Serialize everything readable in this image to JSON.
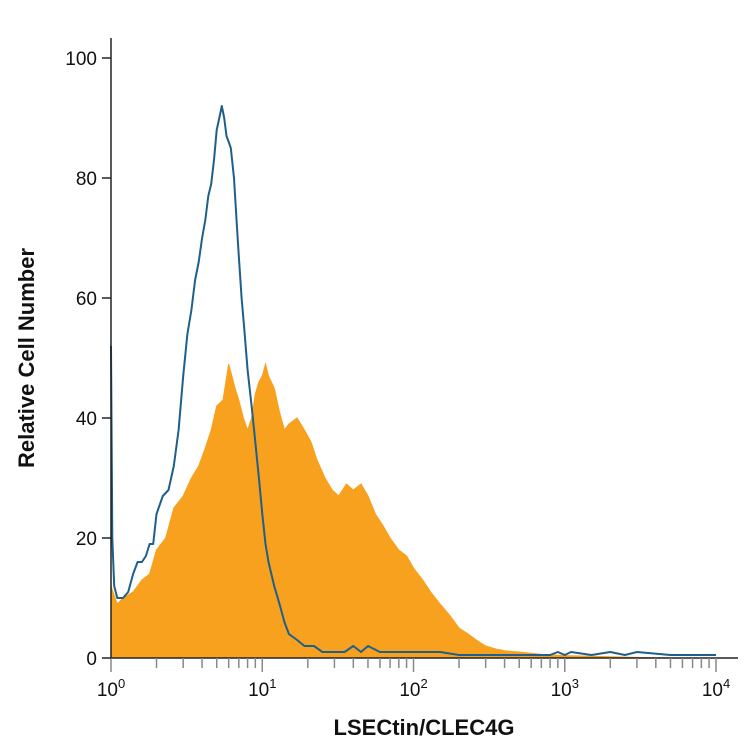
{
  "chart_data": {
    "type": "area",
    "title": "",
    "xlabel": "LSECtin/CLEC4G",
    "ylabel": "Relative Cell Number",
    "x_scale": "log",
    "xlim": [
      1,
      10000
    ],
    "ylim": [
      0,
      100
    ],
    "x_ticks": [
      {
        "value": 1,
        "base": "10",
        "exp": "0"
      },
      {
        "value": 10,
        "base": "10",
        "exp": "1"
      },
      {
        "value": 100,
        "base": "10",
        "exp": "2"
      },
      {
        "value": 1000,
        "base": "10",
        "exp": "3"
      },
      {
        "value": 10000,
        "base": "10",
        "exp": "4"
      }
    ],
    "y_ticks": [
      0,
      20,
      40,
      60,
      80,
      100
    ],
    "grid": false,
    "legend": "none",
    "series": [
      {
        "style": "filled",
        "color": "#F7A11F",
        "x": [
          1,
          1.1,
          1.2,
          1.4,
          1.6,
          1.8,
          2,
          2.3,
          2.6,
          3,
          3.4,
          3.8,
          4.2,
          4.6,
          5,
          5.5,
          6,
          6.3,
          6.6,
          7,
          7.5,
          8,
          8.5,
          9,
          9.5,
          10,
          10.5,
          11,
          12,
          13,
          14,
          15,
          17,
          19,
          21,
          23,
          26,
          29,
          32,
          36,
          40,
          45,
          50,
          56,
          63,
          70,
          80,
          90,
          100,
          115,
          130,
          150,
          175,
          200,
          230,
          260,
          300,
          350,
          400,
          500,
          600,
          700,
          850,
          1000,
          1500,
          2000,
          3000,
          5000,
          7000,
          10000
        ],
        "y": [
          12,
          9,
          10,
          11,
          13,
          14,
          18,
          20,
          25,
          27,
          30,
          32,
          35,
          38,
          42,
          43,
          49,
          47,
          45,
          43,
          40,
          38,
          40,
          44,
          46,
          47,
          49,
          47,
          45,
          41,
          38,
          39,
          40,
          38,
          36,
          33,
          30,
          28,
          27,
          29,
          28,
          29,
          27,
          24,
          22,
          20,
          18,
          17,
          15,
          13,
          11,
          9,
          7,
          5,
          4,
          3,
          2,
          1.5,
          1.2,
          1,
          0.8,
          0.6,
          0.5,
          0.4,
          0.3,
          0.2,
          0.1,
          0,
          0,
          0
        ]
      },
      {
        "style": "line",
        "color": "#1F5F8B",
        "x": [
          1,
          1.02,
          1.05,
          1.1,
          1.2,
          1.3,
          1.4,
          1.5,
          1.6,
          1.7,
          1.8,
          1.9,
          2,
          2.2,
          2.4,
          2.6,
          2.8,
          3,
          3.2,
          3.4,
          3.6,
          3.8,
          4,
          4.2,
          4.4,
          4.6,
          4.8,
          5,
          5.2,
          5.4,
          5.6,
          5.8,
          6,
          6.2,
          6.5,
          6.8,
          7,
          7.3,
          7.6,
          8,
          8.5,
          9,
          9.5,
          10,
          10.5,
          11,
          12,
          13,
          14,
          15,
          17,
          19,
          22,
          25,
          30,
          35,
          40,
          45,
          50,
          60,
          80,
          100,
          150,
          200,
          300,
          500,
          800,
          900,
          1000,
          1100,
          1500,
          2000,
          2500,
          3000,
          5000,
          10000
        ],
        "y": [
          52,
          20,
          12,
          10,
          10,
          11,
          14,
          16,
          16,
          17,
          19,
          19,
          24,
          27,
          28,
          32,
          38,
          47,
          54,
          58,
          63,
          66,
          70,
          73,
          77,
          79,
          83,
          88,
          90,
          92,
          90,
          87,
          86,
          85,
          80,
          72,
          67,
          60,
          55,
          48,
          42,
          36,
          30,
          24,
          19,
          16,
          12,
          9,
          6,
          4,
          3,
          2,
          2,
          1,
          1,
          1,
          2,
          1,
          2,
          1,
          1,
          1,
          1,
          0.5,
          0.5,
          0.5,
          0.5,
          1,
          0.5,
          1,
          0.5,
          1,
          0.5,
          1,
          0.5,
          0.5
        ]
      }
    ]
  }
}
